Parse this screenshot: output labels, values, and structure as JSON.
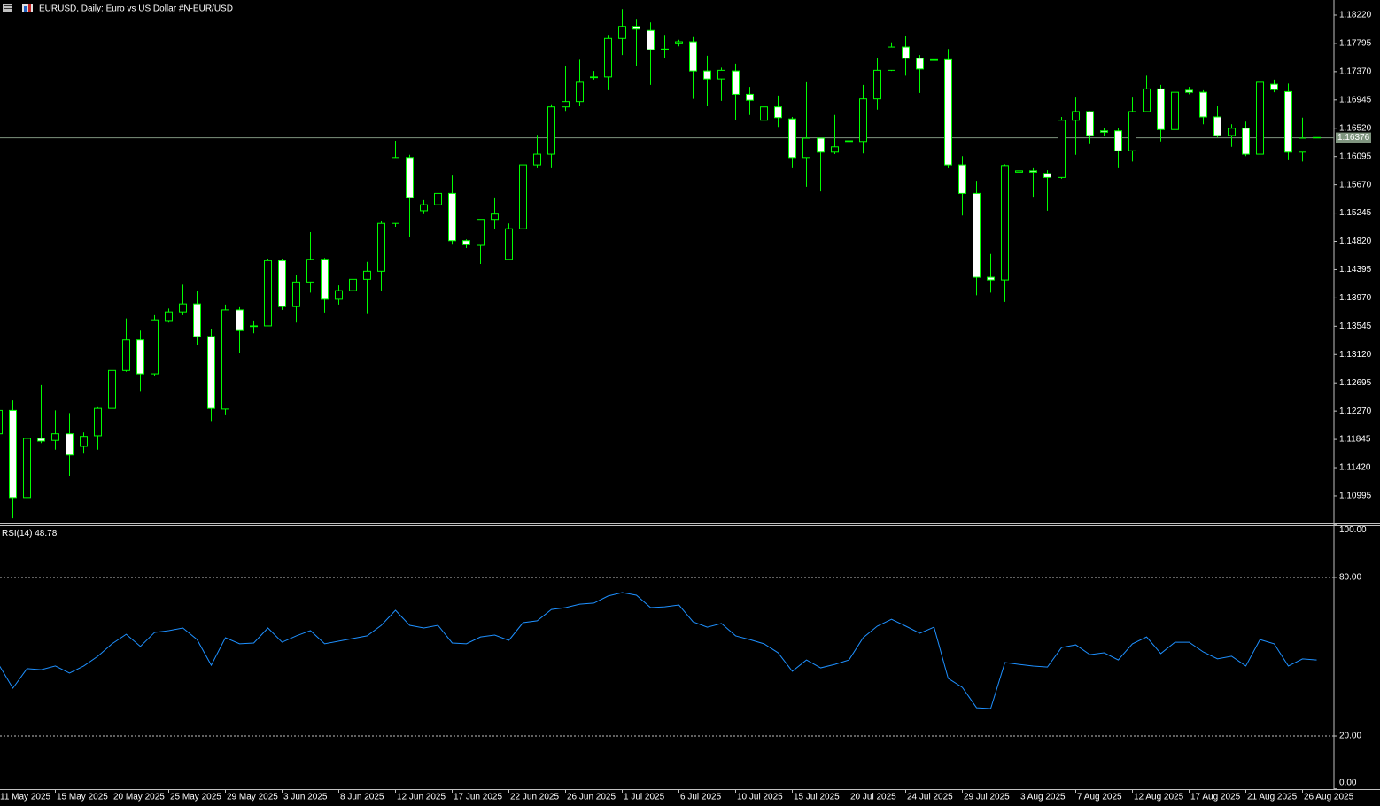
{
  "chart_data": [
    {
      "type": "candlestick",
      "title": "EURUSD, Daily:  Euro vs US Dollar #N-EUR/USD",
      "categories": [
        "11 May 2025",
        null,
        null,
        null,
        "15 May 2025",
        null,
        null,
        null,
        "20 May 2025",
        null,
        null,
        null,
        "25 May 2025",
        null,
        null,
        null,
        "29 May 2025",
        null,
        null,
        null,
        "3 Jun 2025",
        null,
        null,
        null,
        "8 Jun 2025",
        null,
        null,
        null,
        "12 Jun 2025",
        null,
        null,
        null,
        "17 Jun 2025",
        null,
        null,
        null,
        "22 Jun 2025",
        null,
        null,
        null,
        "26 Jun 2025",
        null,
        null,
        null,
        "1 Jul 2025",
        null,
        null,
        null,
        "6 Jul 2025",
        null,
        null,
        null,
        "10 Jul 2025",
        null,
        null,
        null,
        "15 Jul 2025",
        null,
        null,
        null,
        "20 Jul 2025",
        null,
        null,
        null,
        "24 Jul 2025",
        null,
        null,
        null,
        "29 Jul 2025",
        null,
        null,
        null,
        "3 Aug 2025",
        null,
        null,
        null,
        "7 Aug 2025",
        null,
        null,
        null,
        "12 Aug 2025",
        null,
        null,
        null,
        "17 Aug 2025",
        null,
        null,
        null,
        "21 Aug 2025",
        null,
        null,
        null,
        "26 Aug 2025",
        null
      ],
      "open": [
        1.1193,
        1.1228,
        1.1097,
        1.1186,
        1.1183,
        1.1193,
        1.1174,
        1.119,
        1.1231,
        1.1288,
        1.1334,
        1.1283,
        1.1363,
        1.1376,
        1.1388,
        1.1339,
        1.123,
        1.1379,
        1.1354,
        1.1355,
        1.1453,
        1.1384,
        1.1421,
        1.1455,
        1.1395,
        1.1408,
        1.1425,
        1.1437,
        1.1509,
        1.1608,
        1.1528,
        1.1537,
        1.1554,
        1.1483,
        1.1476,
        1.1515,
        1.1455,
        1.1501,
        1.1597,
        1.1613,
        1.1684,
        1.1692,
        1.1728,
        1.1729,
        1.1787,
        1.1805,
        1.1799,
        1.1771,
        1.1779,
        1.1782,
        1.1738,
        1.1726,
        1.1738,
        1.1703,
        1.1664,
        1.1684,
        1.1666,
        1.1608,
        1.1637,
        1.1616,
        1.1632,
        1.1632,
        1.1696,
        1.1739,
        1.1774,
        1.1757,
        1.1754,
        1.1755,
        1.1597,
        1.1554,
        1.1428,
        1.1424,
        1.1586,
        1.1588,
        1.1584,
        1.1578,
        1.1664,
        1.1677,
        1.1648,
        1.1648,
        1.1618,
        1.1677,
        1.1711,
        1.165,
        1.1709,
        1.1706,
        1.1669,
        1.1641,
        1.1652,
        1.1613,
        1.1718,
        1.1707,
        1.1616,
        1.1638
      ],
      "high": [
        1.1246,
        1.1243,
        1.1195,
        1.1266,
        1.1228,
        1.1224,
        1.1195,
        1.1234,
        1.1291,
        1.1366,
        1.1348,
        1.1371,
        1.1381,
        1.1417,
        1.1408,
        1.135,
        1.1387,
        1.1383,
        1.1363,
        1.1456,
        1.1456,
        1.1432,
        1.1496,
        1.1457,
        1.1416,
        1.1443,
        1.1451,
        1.1513,
        1.1633,
        1.1612,
        1.1544,
        1.1614,
        1.1581,
        1.1485,
        1.1515,
        1.1548,
        1.1509,
        1.1608,
        1.1642,
        1.1688,
        1.1746,
        1.1755,
        1.1738,
        1.1791,
        1.1831,
        1.1815,
        1.1811,
        1.1791,
        1.1785,
        1.1789,
        1.1761,
        1.1743,
        1.1749,
        1.1714,
        1.1688,
        1.1701,
        1.1669,
        1.1721,
        1.1637,
        1.1672,
        1.1636,
        1.1717,
        1.1757,
        1.1781,
        1.179,
        1.1762,
        1.1761,
        1.1771,
        1.161,
        1.1573,
        1.1463,
        1.1598,
        1.1597,
        1.1592,
        1.1589,
        1.1669,
        1.1698,
        1.1678,
        1.1653,
        1.1653,
        1.1698,
        1.1731,
        1.1717,
        1.1715,
        1.1714,
        1.1709,
        1.1685,
        1.1658,
        1.1662,
        1.1743,
        1.1725,
        1.1719,
        1.1668,
        1.1638
      ],
      "low": [
        1.1186,
        1.1066,
        1.1097,
        1.1179,
        1.1169,
        1.113,
        1.1163,
        1.1169,
        1.1219,
        1.1286,
        1.1256,
        1.128,
        1.136,
        1.1371,
        1.1326,
        1.1212,
        1.1222,
        1.1314,
        1.1344,
        1.1355,
        1.1379,
        1.136,
        1.1405,
        1.1375,
        1.1387,
        1.1392,
        1.1374,
        1.1408,
        1.1504,
        1.1488,
        1.1523,
        1.1525,
        1.1477,
        1.1472,
        1.1448,
        1.1501,
        1.1455,
        1.1455,
        1.1592,
        1.1592,
        1.1678,
        1.1685,
        1.1725,
        1.1709,
        1.1762,
        1.1745,
        1.1717,
        1.1757,
        1.1775,
        1.1696,
        1.1685,
        1.1693,
        1.1664,
        1.1672,
        1.1661,
        1.1654,
        1.1592,
        1.1564,
        1.1557,
        1.1613,
        1.1624,
        1.1614,
        1.168,
        1.1738,
        1.1731,
        1.1705,
        1.1749,
        1.1592,
        1.1521,
        1.1401,
        1.1405,
        1.1391,
        1.1578,
        1.1549,
        1.1528,
        1.1576,
        1.1612,
        1.1628,
        1.1641,
        1.1592,
        1.1602,
        1.1676,
        1.1632,
        1.1648,
        1.1703,
        1.1658,
        1.1638,
        1.1624,
        1.161,
        1.1582,
        1.1706,
        1.1604,
        1.1602,
        1.1637
      ],
      "close": [
        1.1228,
        1.1097,
        1.1186,
        1.1182,
        1.1193,
        1.1161,
        1.1189,
        1.1231,
        1.1288,
        1.1334,
        1.1283,
        1.1364,
        1.1376,
        1.1388,
        1.1339,
        1.1231,
        1.1379,
        1.1348,
        1.1355,
        1.1453,
        1.1384,
        1.1421,
        1.1455,
        1.1395,
        1.1408,
        1.1425,
        1.1437,
        1.1509,
        1.1608,
        1.1548,
        1.1537,
        1.1554,
        1.1483,
        1.1477,
        1.1515,
        1.1523,
        1.1501,
        1.1597,
        1.1613,
        1.1684,
        1.1692,
        1.1721,
        1.1729,
        1.1787,
        1.1805,
        1.1801,
        1.177,
        1.177,
        1.1782,
        1.1738,
        1.1726,
        1.1739,
        1.1703,
        1.1694,
        1.1684,
        1.1668,
        1.1608,
        1.1637,
        1.1616,
        1.1624,
        1.1633,
        1.1696,
        1.1739,
        1.1774,
        1.1757,
        1.1741,
        1.1755,
        1.1597,
        1.1554,
        1.1428,
        1.1424,
        1.1596,
        1.1588,
        1.1586,
        1.1578,
        1.1664,
        1.1677,
        1.1641,
        1.1646,
        1.1618,
        1.1677,
        1.1711,
        1.165,
        1.1706,
        1.1706,
        1.1669,
        1.1641,
        1.1652,
        1.1613,
        1.1721,
        1.171,
        1.1616,
        1.1637,
        1.16376
      ],
      "color": "#00ff00",
      "bull_fill": "#000000",
      "bear_fill": "#ffffff",
      "last_price": 1.16376,
      "last_price_color": "#7f957f",
      "ylim": [
        1.10582,
        1.18446
      ],
      "yticks": [
        {
          "value": 1.1822,
          "label": "1.18220"
        },
        {
          "value": 1.17795,
          "label": "1.17795"
        },
        {
          "value": 1.1737,
          "label": "1.17370"
        },
        {
          "value": 1.16945,
          "label": "1.16945"
        },
        {
          "value": 1.1652,
          "label": "1.16520"
        },
        {
          "value": 1.16095,
          "label": "1.16095"
        },
        {
          "value": 1.1567,
          "label": "1.15670"
        },
        {
          "value": 1.15245,
          "label": "1.15245"
        },
        {
          "value": 1.1482,
          "label": "1.14820"
        },
        {
          "value": 1.14395,
          "label": "1.14395"
        },
        {
          "value": 1.1397,
          "label": "1.13970"
        },
        {
          "value": 1.13545,
          "label": "1.13545"
        },
        {
          "value": 1.1312,
          "label": "1.13120"
        },
        {
          "value": 1.12695,
          "label": "1.12695"
        },
        {
          "value": 1.1227,
          "label": "1.12270"
        },
        {
          "value": 1.11845,
          "label": "1.11845"
        },
        {
          "value": 1.1142,
          "label": "1.11420"
        },
        {
          "value": 1.10995,
          "label": "1.10995"
        }
      ],
      "grid": false
    },
    {
      "type": "line",
      "title": "RSI(14)",
      "series": [
        {
          "name": "RSI(14)",
          "color": "#1e90ff",
          "values": [
            47.1,
            38.1,
            45.5,
            45.1,
            46.5,
            43.8,
            46.5,
            50.2,
            54.9,
            58.5,
            53.9,
            59.2,
            59.9,
            60.9,
            56.5,
            46.8,
            57.2,
            54.9,
            55.2,
            60.9,
            55.5,
            57.9,
            59.9,
            54.9,
            55.9,
            56.9,
            57.9,
            61.9,
            67.6,
            61.9,
            60.9,
            61.9,
            55.2,
            54.9,
            57.5,
            58.2,
            56.2,
            62.9,
            63.6,
            67.9,
            68.6,
            69.9,
            70.3,
            73.0,
            74.3,
            73.3,
            68.6,
            68.9,
            69.6,
            63.2,
            61.2,
            62.6,
            57.9,
            56.5,
            54.9,
            51.5,
            44.5,
            48.8,
            45.8,
            47.1,
            48.8,
            57.2,
            61.6,
            64.2,
            61.6,
            58.9,
            61.2,
            41.8,
            38.4,
            30.7,
            30.4,
            47.8,
            47.1,
            46.5,
            46.1,
            53.5,
            54.5,
            50.8,
            51.5,
            48.8,
            54.9,
            57.5,
            51.2,
            55.5,
            55.5,
            51.8,
            49.2,
            50.2,
            46.5,
            56.5,
            54.9,
            46.5,
            49.2,
            48.78
          ]
        }
      ],
      "ylim": [
        0,
        100
      ],
      "yticks": [
        {
          "value": 100,
          "label": "100.00"
        },
        {
          "value": 80,
          "label": "80.00"
        },
        {
          "value": 20,
          "label": "20.00"
        },
        {
          "value": 0,
          "label": "0.00"
        }
      ],
      "levels": [
        80,
        20
      ]
    }
  ]
}
